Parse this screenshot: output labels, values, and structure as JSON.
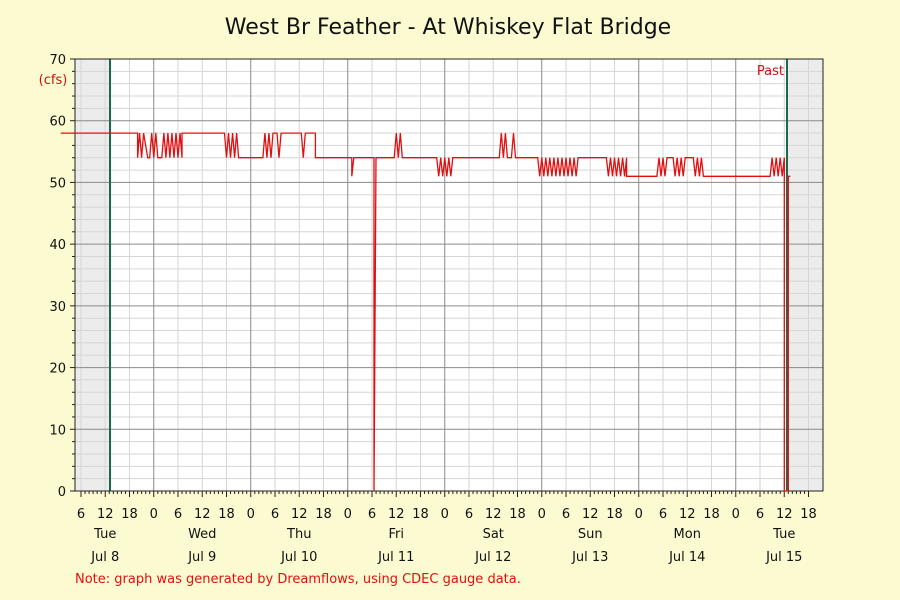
{
  "chart_data": {
    "type": "line",
    "title": "West Br Feather - At Whiskey Flat Bridge",
    "ylabel": "(cfs)",
    "ylim": [
      0,
      70
    ],
    "yticks": [
      0,
      10,
      20,
      30,
      40,
      50,
      60,
      70
    ],
    "x_hour_ticks": [
      "6",
      "12",
      "18",
      "0",
      "6",
      "12",
      "18",
      "0",
      "6",
      "12",
      "18",
      "0",
      "6",
      "12",
      "18",
      "0",
      "6",
      "12",
      "18",
      "0",
      "6",
      "12",
      "18",
      "0",
      "6",
      "12",
      "18",
      "0",
      "6",
      "12",
      "18"
    ],
    "day_labels": [
      {
        "weekday": "Tue",
        "date": "Jul 8"
      },
      {
        "weekday": "Wed",
        "date": "Jul 9"
      },
      {
        "weekday": "Thu",
        "date": "Jul 10"
      },
      {
        "weekday": "Fri",
        "date": "Jul 11"
      },
      {
        "weekday": "Sat",
        "date": "Jul 12"
      },
      {
        "weekday": "Sun",
        "date": "Jul 13"
      },
      {
        "weekday": "Mon",
        "date": "Jul 14"
      },
      {
        "weekday": "Tue",
        "date": "Jul 15"
      }
    ],
    "marker_label": "Past",
    "note": "Note: graph was generated by Dreamflows, using CDEC gauge data.",
    "grid": true,
    "colors": {
      "line": "#e01010",
      "marker": "#1a6a4a",
      "background": "#fbfad0",
      "plot": "#ffffff"
    },
    "series": [
      {
        "values": [
          [
            "Jul 8 01:00",
            58
          ],
          [
            "Jul 8 20:00",
            58
          ],
          [
            "Jul 8 20:00",
            54
          ],
          [
            "Jul 8 20:30",
            58
          ],
          [
            "Jul 8 21:00",
            54
          ],
          [
            "Jul 8 21:30",
            58
          ],
          [
            "Jul 8 22:30",
            54
          ],
          [
            "Jul 8 23:00",
            54
          ],
          [
            "Jul 8 23:30",
            58
          ],
          [
            "Jul 9 00:00",
            54
          ],
          [
            "Jul 9 00:30",
            58
          ],
          [
            "Jul 9 01:00",
            54
          ],
          [
            "Jul 9 02:00",
            54
          ],
          [
            "Jul 9 02:30",
            58
          ],
          [
            "Jul 9 03:00",
            54
          ],
          [
            "Jul 9 03:30",
            58
          ],
          [
            "Jul 9 04:00",
            54
          ],
          [
            "Jul 9 04:30",
            58
          ],
          [
            "Jul 9 05:00",
            54
          ],
          [
            "Jul 9 05:30",
            58
          ],
          [
            "Jul 9 06:00",
            54
          ],
          [
            "Jul 9 06:30",
            58
          ],
          [
            "Jul 9 07:00",
            54
          ],
          [
            "Jul 9 07:00",
            58
          ],
          [
            "Jul 9 17:30",
            58
          ],
          [
            "Jul 9 18:00",
            54
          ],
          [
            "Jul 9 18:30",
            58
          ],
          [
            "Jul 9 19:00",
            54
          ],
          [
            "Jul 9 19:30",
            58
          ],
          [
            "Jul 9 20:00",
            54
          ],
          [
            "Jul 9 20:30",
            58
          ],
          [
            "Jul 9 21:00",
            54
          ],
          [
            "Jul 10 03:00",
            54
          ],
          [
            "Jul 10 03:30",
            58
          ],
          [
            "Jul 10 04:00",
            54
          ],
          [
            "Jul 10 04:30",
            58
          ],
          [
            "Jul 10 05:00",
            54
          ],
          [
            "Jul 10 05:30",
            58
          ],
          [
            "Jul 10 06:30",
            58
          ],
          [
            "Jul 10 07:00",
            54
          ],
          [
            "Jul 10 07:30",
            58
          ],
          [
            "Jul 10 12:30",
            58
          ],
          [
            "Jul 10 13:00",
            54
          ],
          [
            "Jul 10 13:30",
            58
          ],
          [
            "Jul 10 16:00",
            58
          ],
          [
            "Jul 10 16:00",
            54
          ],
          [
            "Jul 11 01:00",
            54
          ],
          [
            "Jul 11 01:00",
            51
          ],
          [
            "Jul 11 01:30",
            54
          ],
          [
            "Jul 11 06:30",
            54
          ],
          [
            "Jul 11 06:30",
            0
          ],
          [
            "Jul 11 07:00",
            54
          ],
          [
            "Jul 11 11:30",
            54
          ],
          [
            "Jul 11 12:00",
            58
          ],
          [
            "Jul 11 12:30",
            54
          ],
          [
            "Jul 11 13:00",
            58
          ],
          [
            "Jul 11 13:30",
            54
          ],
          [
            "Jul 11 22:00",
            54
          ],
          [
            "Jul 11 22:30",
            51
          ],
          [
            "Jul 11 23:00",
            54
          ],
          [
            "Jul 11 23:30",
            51
          ],
          [
            "Jul 12 00:00",
            54
          ],
          [
            "Jul 12 00:30",
            51
          ],
          [
            "Jul 12 01:00",
            54
          ],
          [
            "Jul 12 01:30",
            51
          ],
          [
            "Jul 12 02:00",
            54
          ],
          [
            "Jul 12 13:30",
            54
          ],
          [
            "Jul 12 14:00",
            58
          ],
          [
            "Jul 12 14:30",
            54
          ],
          [
            "Jul 12 15:00",
            58
          ],
          [
            "Jul 12 15:30",
            54
          ],
          [
            "Jul 12 16:30",
            54
          ],
          [
            "Jul 12 17:00",
            58
          ],
          [
            "Jul 12 17:30",
            54
          ],
          [
            "Jul 12 23:00",
            54
          ],
          [
            "Jul 12 23:30",
            51
          ],
          [
            "Jul 13 00:00",
            54
          ],
          [
            "Jul 13 00:30",
            51
          ],
          [
            "Jul 13 01:00",
            54
          ],
          [
            "Jul 13 01:30",
            51
          ],
          [
            "Jul 13 02:00",
            54
          ],
          [
            "Jul 13 02:30",
            51
          ],
          [
            "Jul 13 03:00",
            54
          ],
          [
            "Jul 13 03:30",
            51
          ],
          [
            "Jul 13 04:00",
            54
          ],
          [
            "Jul 13 04:30",
            51
          ],
          [
            "Jul 13 05:00",
            54
          ],
          [
            "Jul 13 05:30",
            51
          ],
          [
            "Jul 13 06:00",
            54
          ],
          [
            "Jul 13 06:30",
            51
          ],
          [
            "Jul 13 07:00",
            54
          ],
          [
            "Jul 13 07:30",
            51
          ],
          [
            "Jul 13 08:00",
            54
          ],
          [
            "Jul 13 08:30",
            51
          ],
          [
            "Jul 13 09:00",
            54
          ],
          [
            "Jul 13 16:00",
            54
          ],
          [
            "Jul 13 16:30",
            51
          ],
          [
            "Jul 13 17:00",
            54
          ],
          [
            "Jul 13 17:30",
            51
          ],
          [
            "Jul 13 18:00",
            54
          ],
          [
            "Jul 13 18:30",
            51
          ],
          [
            "Jul 13 19:00",
            54
          ],
          [
            "Jul 13 19:30",
            51
          ],
          [
            "Jul 13 20:00",
            54
          ],
          [
            "Jul 13 20:30",
            51
          ],
          [
            "Jul 13 21:00",
            54
          ],
          [
            "Jul 13 21:00",
            51
          ],
          [
            "Jul 14 04:30",
            51
          ],
          [
            "Jul 14 05:00",
            54
          ],
          [
            "Jul 14 05:30",
            51
          ],
          [
            "Jul 14 06:00",
            54
          ],
          [
            "Jul 14 06:30",
            51
          ],
          [
            "Jul 14 07:00",
            54
          ],
          [
            "Jul 14 08:30",
            54
          ],
          [
            "Jul 14 09:00",
            51
          ],
          [
            "Jul 14 09:30",
            54
          ],
          [
            "Jul 14 10:00",
            51
          ],
          [
            "Jul 14 10:30",
            54
          ],
          [
            "Jul 14 11:00",
            51
          ],
          [
            "Jul 14 11:30",
            54
          ],
          [
            "Jul 14 13:30",
            54
          ],
          [
            "Jul 14 14:00",
            51
          ],
          [
            "Jul 14 14:30",
            54
          ],
          [
            "Jul 14 15:00",
            51
          ],
          [
            "Jul 14 15:30",
            54
          ],
          [
            "Jul 14 16:00",
            51
          ],
          [
            "Jul 15 08:30",
            51
          ],
          [
            "Jul 15 09:00",
            54
          ],
          [
            "Jul 15 09:30",
            51
          ],
          [
            "Jul 15 10:00",
            54
          ],
          [
            "Jul 15 10:30",
            51
          ],
          [
            "Jul 15 11:00",
            54
          ],
          [
            "Jul 15 11:30",
            51
          ],
          [
            "Jul 15 12:00",
            54
          ],
          [
            "Jul 15 12:00",
            0
          ],
          [
            "Jul 15 13:00",
            0
          ],
          [
            "Jul 15 13:00",
            51
          ],
          [
            "Jul 15 13:30",
            51
          ]
        ]
      }
    ]
  }
}
